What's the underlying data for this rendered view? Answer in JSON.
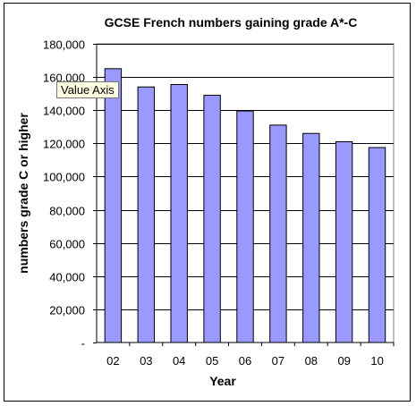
{
  "colors": {
    "plot_background": "#ffffff",
    "bar_fill": "#9999ff",
    "bar_stroke": "#000000",
    "gridline": "#000000",
    "tooltip_background": "#ffffe1"
  },
  "tooltip": {
    "text": "Value Axis"
  },
  "chart_data": {
    "type": "bar",
    "title": "GCSE French numbers gaining grade A*-C",
    "xlabel": "Year",
    "ylabel": "numbers grade C or higher",
    "categories": [
      "02",
      "03",
      "04",
      "05",
      "06",
      "07",
      "08",
      "09",
      "10"
    ],
    "values": [
      165000,
      154000,
      155500,
      149000,
      139500,
      131000,
      126000,
      121000,
      117500
    ],
    "ylim": [
      0,
      180000
    ],
    "yticks": [
      0,
      20000,
      40000,
      60000,
      80000,
      100000,
      120000,
      140000,
      160000,
      180000
    ],
    "ytick_labels": [
      "-",
      "20,000",
      "40,000",
      "60,000",
      "80,000",
      "100,000",
      "120,000",
      "140,000",
      "160,000",
      "180,000"
    ],
    "grid": true,
    "legend": "none"
  }
}
